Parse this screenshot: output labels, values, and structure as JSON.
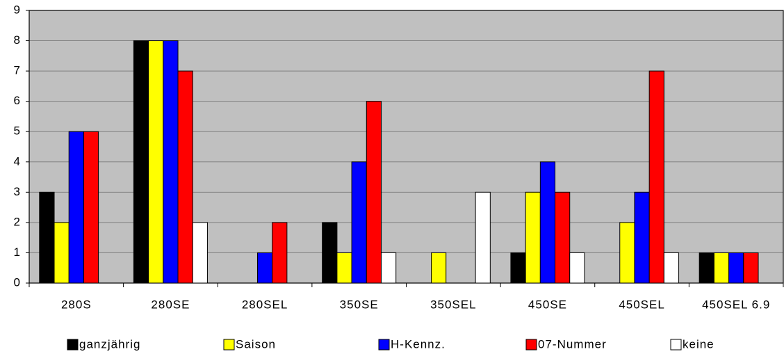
{
  "chart_data": {
    "type": "bar",
    "categories": [
      "280S",
      "280SE",
      "280SEL",
      "350SE",
      "350SEL",
      "450SE",
      "450SEL",
      "450SEL 6.9"
    ],
    "series": [
      {
        "name": "ganzjährig",
        "color": "#000000",
        "values": [
          3,
          8,
          0,
          2,
          0,
          1,
          0,
          1
        ]
      },
      {
        "name": "Saison",
        "color": "#ffff00",
        "values": [
          2,
          8,
          0,
          1,
          1,
          3,
          2,
          1
        ]
      },
      {
        "name": "H-Kennz.",
        "color": "#0000ff",
        "values": [
          5,
          8,
          1,
          4,
          0,
          4,
          3,
          1
        ]
      },
      {
        "name": "07-Nummer",
        "color": "#ff0000",
        "values": [
          5,
          7,
          2,
          6,
          0,
          3,
          7,
          1
        ]
      },
      {
        "name": "keine",
        "color": "#ffffff",
        "values": [
          0,
          2,
          0,
          1,
          3,
          1,
          1,
          0
        ]
      }
    ],
    "ylim": [
      0,
      9
    ],
    "yticks": [
      0,
      1,
      2,
      3,
      4,
      5,
      6,
      7,
      8,
      9
    ],
    "grid": true,
    "legend": "bottom"
  }
}
